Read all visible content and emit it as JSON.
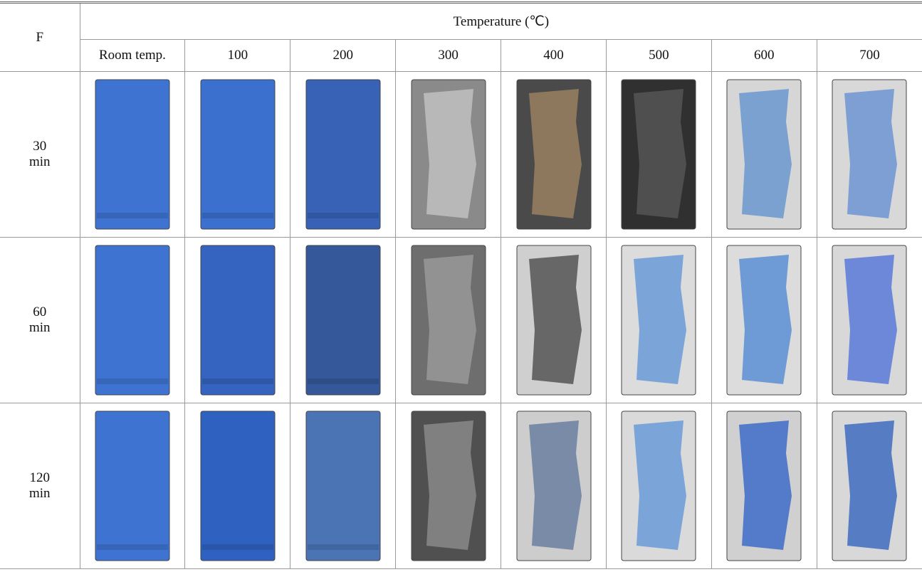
{
  "table": {
    "header": {
      "corner": "F",
      "group": "Temperature (℃)",
      "columns": [
        "Room temp.",
        "100",
        "200",
        "300",
        "400",
        "500",
        "600",
        "700"
      ]
    },
    "rows": [
      {
        "label": "30\nmin"
      },
      {
        "label": "60\nmin"
      },
      {
        "label": "120\nmin"
      }
    ]
  }
}
